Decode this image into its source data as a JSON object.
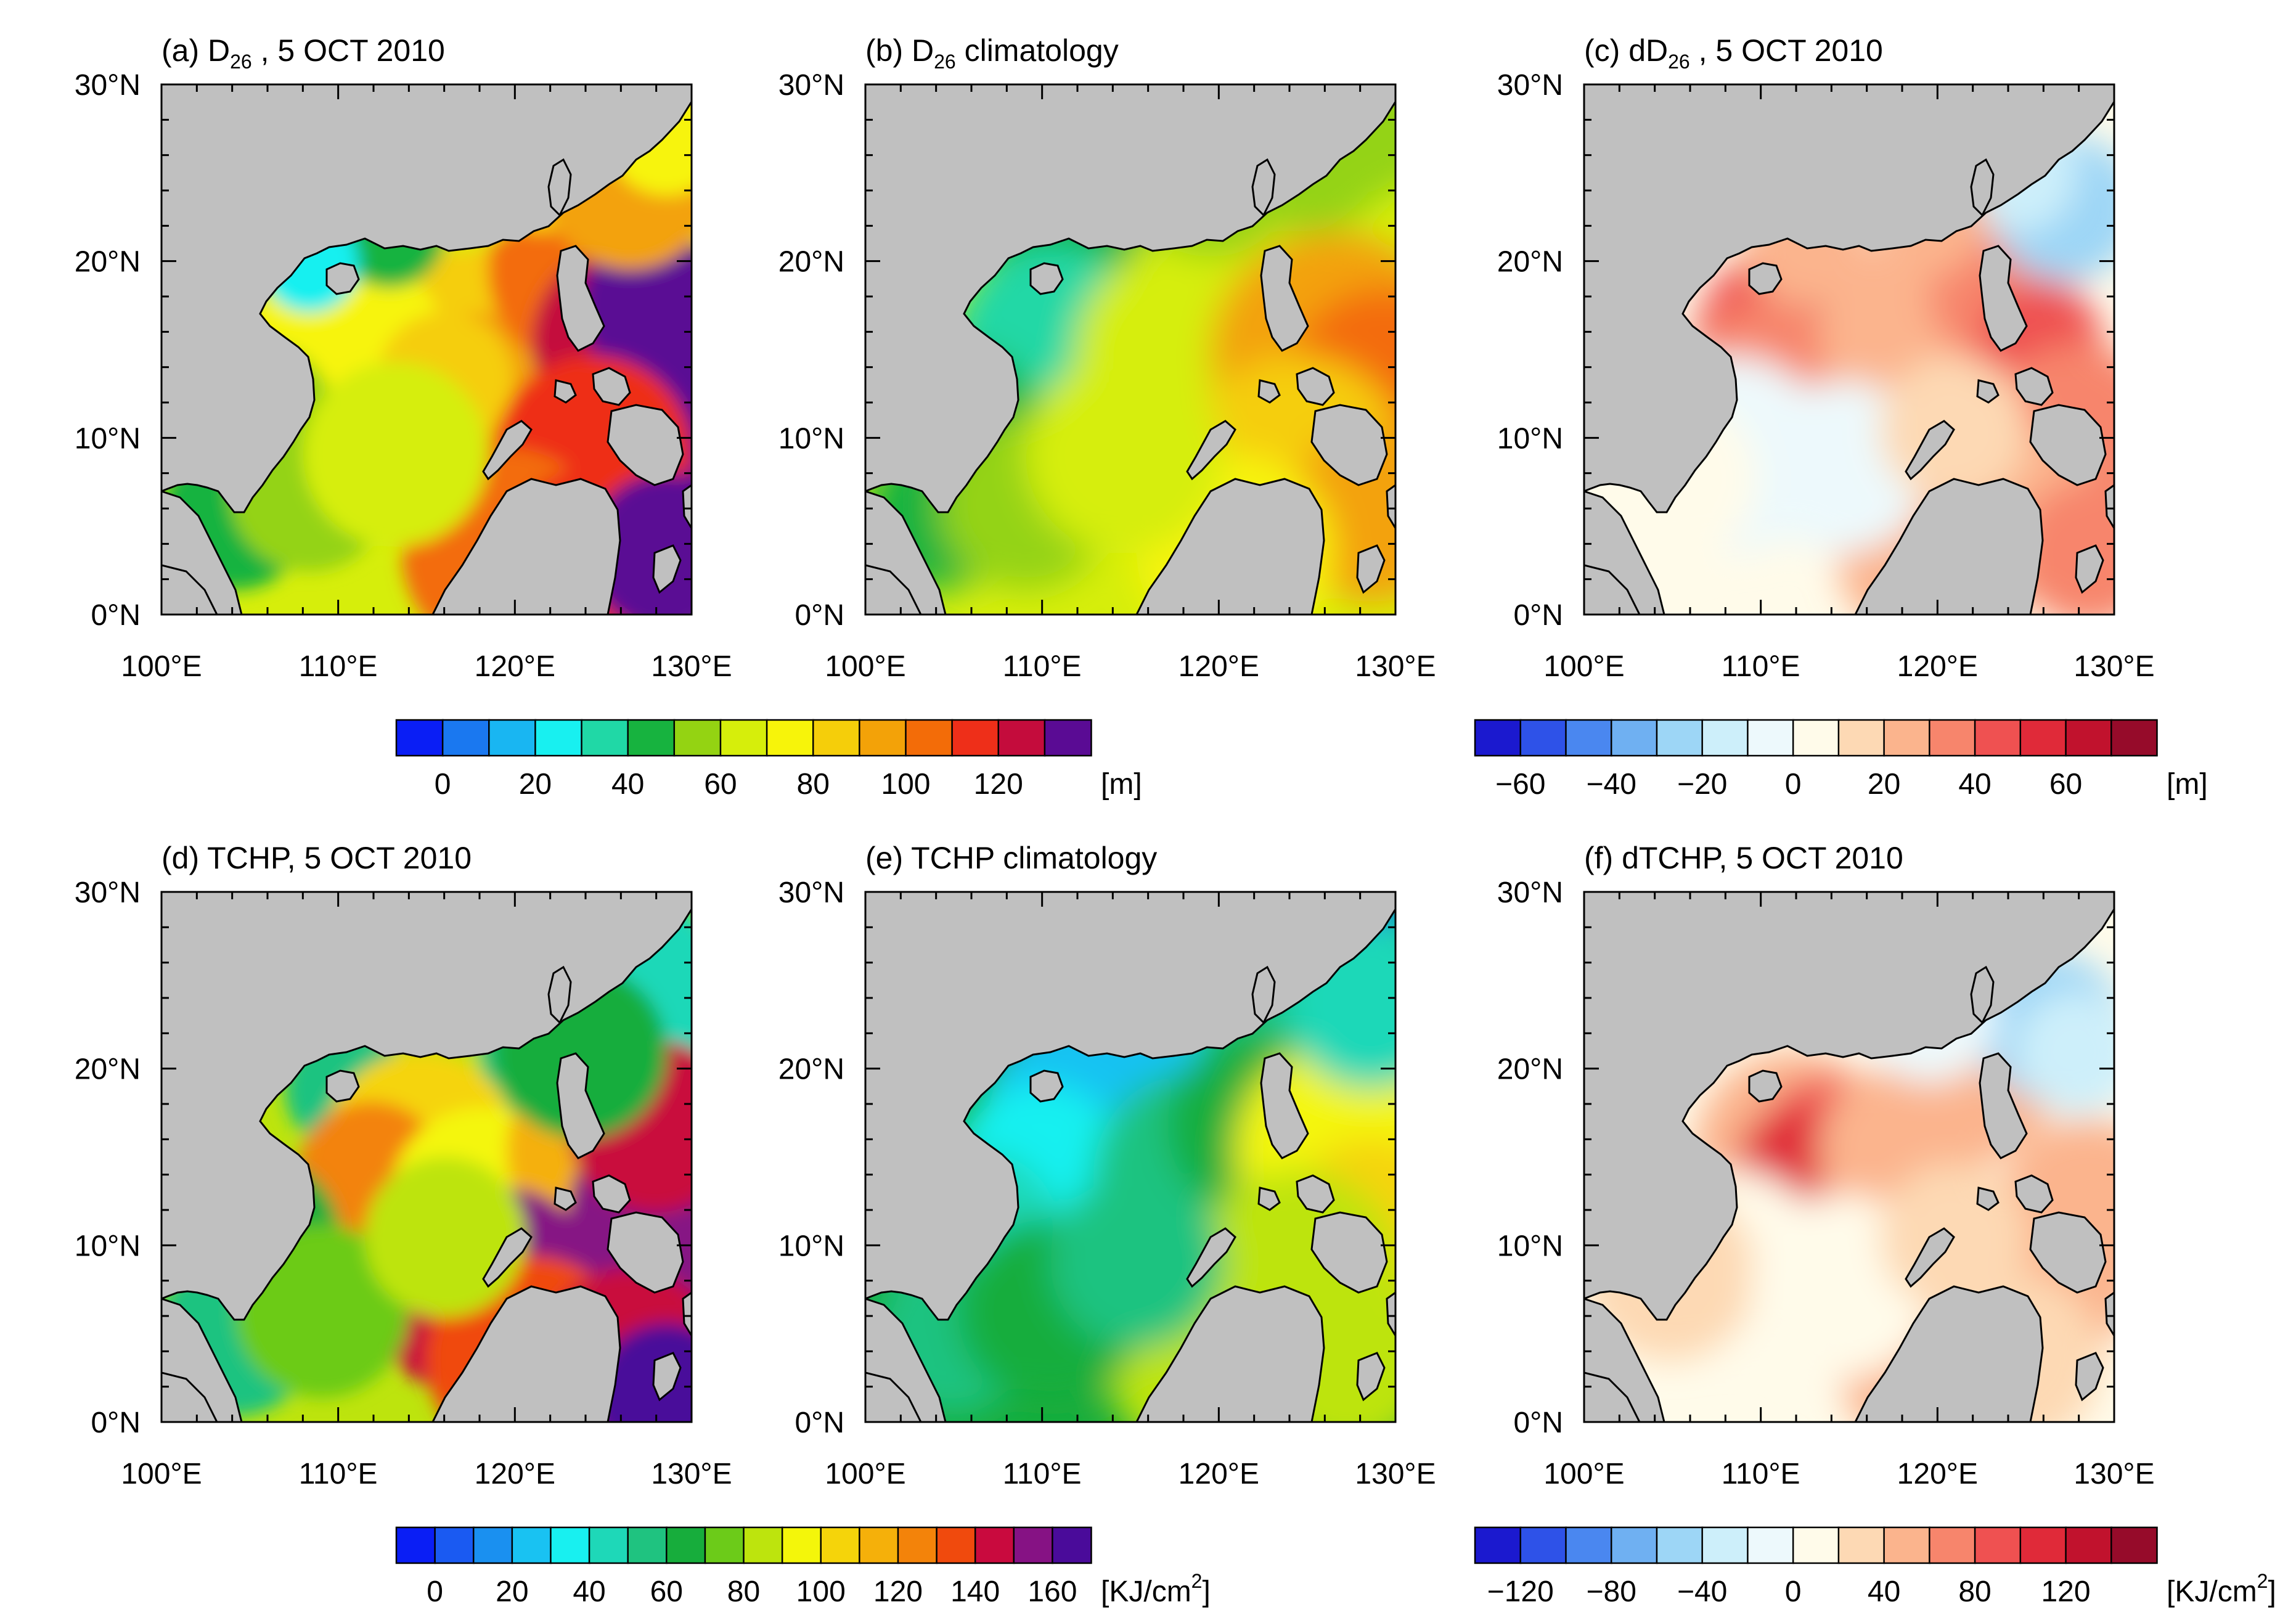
{
  "chart_data": [
    {
      "id": "a",
      "type": "heatmap",
      "title_parts": {
        "prefix": "(a) D",
        "sub": "26",
        "suffix": " , 5 OCT 2010"
      },
      "x_ticks": [
        "100°E",
        "110°E",
        "120°E",
        "130°E"
      ],
      "y_ticks": [
        "0°N",
        "10°N",
        "20°N",
        "30°N"
      ],
      "xlim": [
        100,
        130
      ],
      "ylim": [
        0,
        30
      ],
      "scale": "d26"
    },
    {
      "id": "b",
      "type": "heatmap",
      "title_parts": {
        "prefix": "(b) D",
        "sub": "26",
        "suffix": "  climatology"
      },
      "x_ticks": [
        "100°E",
        "110°E",
        "120°E",
        "130°E"
      ],
      "y_ticks": [
        "0°N",
        "10°N",
        "20°N",
        "30°N"
      ],
      "xlim": [
        100,
        130
      ],
      "ylim": [
        0,
        30
      ],
      "scale": "d26"
    },
    {
      "id": "c",
      "type": "heatmap",
      "title_parts": {
        "prefix": "(c) dD",
        "sub": "26",
        "suffix": " , 5 OCT 2010"
      },
      "x_ticks": [
        "100°E",
        "110°E",
        "120°E",
        "130°E"
      ],
      "y_ticks": [
        "0°N",
        "10°N",
        "20°N",
        "30°N"
      ],
      "xlim": [
        100,
        130
      ],
      "ylim": [
        0,
        30
      ],
      "scale": "dd26"
    },
    {
      "id": "d",
      "type": "heatmap",
      "title_parts": {
        "prefix": "(d) TCHP, 5 OCT 2010",
        "sub": "",
        "suffix": ""
      },
      "x_ticks": [
        "100°E",
        "110°E",
        "120°E",
        "130°E"
      ],
      "y_ticks": [
        "0°N",
        "10°N",
        "20°N",
        "30°N"
      ],
      "xlim": [
        100,
        130
      ],
      "ylim": [
        0,
        30
      ],
      "scale": "tchp"
    },
    {
      "id": "e",
      "type": "heatmap",
      "title_parts": {
        "prefix": "(e) TCHP climatology",
        "sub": "",
        "suffix": ""
      },
      "x_ticks": [
        "100°E",
        "110°E",
        "120°E",
        "130°E"
      ],
      "y_ticks": [
        "0°N",
        "10°N",
        "20°N",
        "30°N"
      ],
      "xlim": [
        100,
        130
      ],
      "ylim": [
        0,
        30
      ],
      "scale": "tchp"
    },
    {
      "id": "f",
      "type": "heatmap",
      "title_parts": {
        "prefix": "(f) dTCHP, 5 OCT 2010",
        "sub": "",
        "suffix": ""
      },
      "x_ticks": [
        "100°E",
        "110°E",
        "120°E",
        "130°E"
      ],
      "y_ticks": [
        "0°N",
        "10°N",
        "20°N",
        "30°N"
      ],
      "xlim": [
        100,
        130
      ],
      "ylim": [
        0,
        30
      ],
      "scale": "dtchp"
    }
  ],
  "colorbars": {
    "d26": {
      "unit": "[m]",
      "unit_sup": "",
      "unit_suffix": "",
      "tick_labels": [
        "0",
        "20",
        "40",
        "60",
        "80",
        "100",
        "120"
      ],
      "colors": [
        "#0a1ef5",
        "#1a78f0",
        "#19b6f2",
        "#18f0f0",
        "#20d8a6",
        "#17b33f",
        "#94d312",
        "#d6ee0b",
        "#f7f40a",
        "#f5ce0a",
        "#f3a208",
        "#f36c08",
        "#ee2f19",
        "#c40c3c",
        "#5a0b94"
      ]
    },
    "dd26": {
      "unit": "[m]",
      "unit_sup": "",
      "unit_suffix": "",
      "tick_labels": [
        "−60",
        "−40",
        "−20",
        "0",
        "20",
        "40",
        "60"
      ],
      "colors": [
        "#1b19cf",
        "#2e52e8",
        "#4a87f0",
        "#6fb0f2",
        "#9dd6f6",
        "#cdeffa",
        "#edf9fc",
        "#fffbea",
        "#fdd9b4",
        "#fbb48d",
        "#f7856c",
        "#ef5151",
        "#e02a39",
        "#c1122d",
        "#960b2a"
      ]
    },
    "tchp": {
      "unit": "[KJ/cm",
      "unit_sup": "2",
      "unit_suffix": "]",
      "tick_labels": [
        "0",
        "20",
        "40",
        "60",
        "80",
        "100",
        "120",
        "140",
        "160"
      ],
      "colors": [
        "#0a1ef5",
        "#1a5af2",
        "#1a90f0",
        "#19c2f2",
        "#18f0f0",
        "#1ed8b8",
        "#1fc380",
        "#17ad3c",
        "#6ccb19",
        "#bde40d",
        "#f4f60a",
        "#f5d40a",
        "#f5b00a",
        "#f3830a",
        "#f04a0d",
        "#c90a3e",
        "#861284",
        "#4a0b9a"
      ]
    },
    "dtchp": {
      "unit": "[KJ/cm",
      "unit_sup": "2",
      "unit_suffix": "]",
      "tick_labels": [
        "−120",
        "−80",
        "−40",
        "0",
        "40",
        "80",
        "120"
      ],
      "colors": [
        "#1b19cf",
        "#2e52e8",
        "#4a87f0",
        "#6fb0f2",
        "#9dd6f6",
        "#cdeffa",
        "#edf9fc",
        "#fffbea",
        "#fdd9b4",
        "#fbb48d",
        "#f7856c",
        "#ef5151",
        "#e02a39",
        "#c1122d",
        "#960b2a"
      ]
    }
  },
  "colors": {
    "land": "#c0c0c0",
    "coastline": "#000000"
  }
}
